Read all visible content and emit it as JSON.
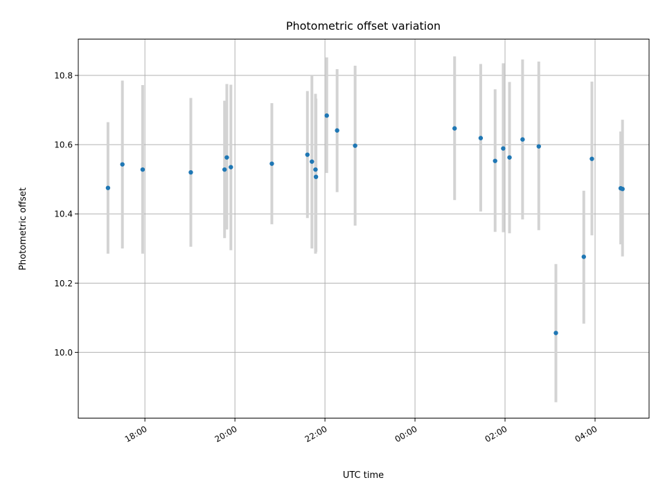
{
  "chart_data": {
    "type": "scatter",
    "title": "Photometric offset variation",
    "xlabel": "UTC time",
    "ylabel": "Photometric offset",
    "x_unit": "hours (UTC, continuing past midnight)",
    "xlim": [
      16.52,
      29.2
    ],
    "ylim": [
      9.81,
      10.905
    ],
    "grid": true,
    "x_ticks": [
      {
        "value": 18,
        "label": "18:00"
      },
      {
        "value": 20,
        "label": "20:00"
      },
      {
        "value": 22,
        "label": "22:00"
      },
      {
        "value": 24,
        "label": "00:00"
      },
      {
        "value": 26,
        "label": "02:00"
      },
      {
        "value": 28,
        "label": "04:00"
      }
    ],
    "y_ticks": [
      {
        "value": 10.0,
        "label": "10.0"
      },
      {
        "value": 10.2,
        "label": "10.2"
      },
      {
        "value": 10.4,
        "label": "10.4"
      },
      {
        "value": 10.6,
        "label": "10.6"
      },
      {
        "value": 10.8,
        "label": "10.8"
      }
    ],
    "colors": {
      "point": "#1f77b4",
      "errorbar": "#d3d3d3"
    },
    "points": [
      {
        "x": 17.18,
        "y": 10.475,
        "ylow": 10.285,
        "yhigh": 10.665
      },
      {
        "x": 17.5,
        "y": 10.543,
        "ylow": 10.3,
        "yhigh": 10.785
      },
      {
        "x": 17.95,
        "y": 10.528,
        "ylow": 10.285,
        "yhigh": 10.772
      },
      {
        "x": 19.02,
        "y": 10.52,
        "ylow": 10.305,
        "yhigh": 10.735
      },
      {
        "x": 19.77,
        "y": 10.528,
        "ylow": 10.33,
        "yhigh": 10.727
      },
      {
        "x": 19.82,
        "y": 10.563,
        "ylow": 10.355,
        "yhigh": 10.775
      },
      {
        "x": 19.91,
        "y": 10.535,
        "ylow": 10.295,
        "yhigh": 10.773
      },
      {
        "x": 20.82,
        "y": 10.545,
        "ylow": 10.37,
        "yhigh": 10.72
      },
      {
        "x": 21.61,
        "y": 10.571,
        "ylow": 10.388,
        "yhigh": 10.755
      },
      {
        "x": 21.71,
        "y": 10.551,
        "ylow": 10.3,
        "yhigh": 10.8
      },
      {
        "x": 21.79,
        "y": 10.528,
        "ylow": 10.285,
        "yhigh": 10.747
      },
      {
        "x": 21.8,
        "y": 10.507,
        "ylow": 10.29,
        "yhigh": 10.733
      },
      {
        "x": 22.04,
        "y": 10.684,
        "ylow": 10.518,
        "yhigh": 10.852
      },
      {
        "x": 22.27,
        "y": 10.641,
        "ylow": 10.463,
        "yhigh": 10.818
      },
      {
        "x": 22.67,
        "y": 10.597,
        "ylow": 10.366,
        "yhigh": 10.828
      },
      {
        "x": 24.88,
        "y": 10.647,
        "ylow": 10.44,
        "yhigh": 10.855
      },
      {
        "x": 25.46,
        "y": 10.619,
        "ylow": 10.407,
        "yhigh": 10.833
      },
      {
        "x": 25.78,
        "y": 10.553,
        "ylow": 10.348,
        "yhigh": 10.76
      },
      {
        "x": 25.96,
        "y": 10.589,
        "ylow": 10.347,
        "yhigh": 10.835
      },
      {
        "x": 26.1,
        "y": 10.563,
        "ylow": 10.344,
        "yhigh": 10.781
      },
      {
        "x": 26.39,
        "y": 10.615,
        "ylow": 10.384,
        "yhigh": 10.846
      },
      {
        "x": 26.75,
        "y": 10.595,
        "ylow": 10.353,
        "yhigh": 10.84
      },
      {
        "x": 27.13,
        "y": 10.056,
        "ylow": 9.856,
        "yhigh": 10.255
      },
      {
        "x": 27.75,
        "y": 10.276,
        "ylow": 10.083,
        "yhigh": 10.467
      },
      {
        "x": 27.93,
        "y": 10.559,
        "ylow": 10.338,
        "yhigh": 10.782
      },
      {
        "x": 28.57,
        "y": 10.474,
        "ylow": 10.312,
        "yhigh": 10.638
      },
      {
        "x": 28.61,
        "y": 10.472,
        "ylow": 10.277,
        "yhigh": 10.672
      }
    ]
  }
}
